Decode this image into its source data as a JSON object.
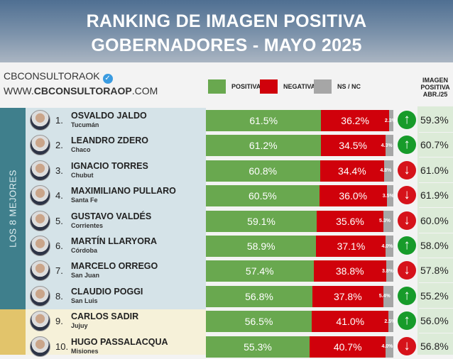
{
  "header": {
    "line1": "RANKING DE IMAGEN POSITIVA",
    "line2": "GOBERNADORES - MAYO 2025"
  },
  "brand": {
    "account": "CBCONSULTORAOK",
    "url_pre": "WWW.",
    "url_bold": "CBCONSULTORAOP",
    "url_post": ".COM"
  },
  "legend": {
    "positive": "POSITIVA",
    "negative": "NEGATIVA",
    "ns": "NS / NC",
    "positive_color": "#69a84f",
    "negative_color": "#d0010b",
    "ns_color": "#a6a6a6"
  },
  "prev_header": [
    "IMAGEN",
    "POSITIVA",
    "ABR./25"
  ],
  "group_label": "LOS 8 MEJORES",
  "rows": [
    {
      "rank": "1.",
      "name": "OSVALDO JALDO",
      "province": "Tucumán",
      "pos": 61.5,
      "neg": 36.2,
      "ns": 2.3,
      "trend": "up",
      "prev": "59.3%"
    },
    {
      "rank": "2.",
      "name": "LEANDRO ZDERO",
      "province": "Chaco",
      "pos": 61.2,
      "neg": 34.5,
      "ns": 4.3,
      "trend": "up",
      "prev": "60.7%"
    },
    {
      "rank": "3.",
      "name": "IGNACIO TORRES",
      "province": "Chubut",
      "pos": 60.8,
      "neg": 34.4,
      "ns": 4.8,
      "trend": "down",
      "prev": "61.0%"
    },
    {
      "rank": "4.",
      "name": "MAXIMILIANO PULLARO",
      "province": "Santa Fe",
      "pos": 60.5,
      "neg": 36.0,
      "ns": 3.5,
      "trend": "down",
      "prev": "61.9%"
    },
    {
      "rank": "5.",
      "name": "GUSTAVO VALDÉS",
      "province": "Corrientes",
      "pos": 59.1,
      "neg": 35.6,
      "ns": 5.3,
      "trend": "down",
      "prev": "60.0%"
    },
    {
      "rank": "6.",
      "name": "MARTÍN LLARYORA",
      "province": "Córdoba",
      "pos": 58.9,
      "neg": 37.1,
      "ns": 4.0,
      "trend": "up",
      "prev": "58.0%"
    },
    {
      "rank": "7.",
      "name": "MARCELO ORREGO",
      "province": "San Juan",
      "pos": 57.4,
      "neg": 38.8,
      "ns": 3.8,
      "trend": "down",
      "prev": "57.8%"
    },
    {
      "rank": "8.",
      "name": "CLAUDIO POGGI",
      "province": "San Luis",
      "pos": 56.8,
      "neg": 37.8,
      "ns": 5.4,
      "trend": "up",
      "prev": "55.2%"
    },
    {
      "rank": "9.",
      "name": "CARLOS SADIR",
      "province": "Jujuy",
      "pos": 56.5,
      "neg": 41.0,
      "ns": 2.5,
      "trend": "up",
      "prev": "56.0%"
    },
    {
      "rank": "10.",
      "name": "HUGO PASSALACQUA",
      "province": "Misiones",
      "pos": 55.3,
      "neg": 40.7,
      "ns": 4.0,
      "trend": "down",
      "prev": "56.8%"
    }
  ]
}
